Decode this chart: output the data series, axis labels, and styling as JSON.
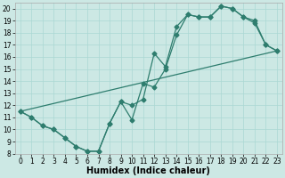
{
  "xlabel": "Humidex (Indice chaleur)",
  "bg_color": "#cce8e4",
  "grid_color": "#aad8d3",
  "line_color": "#2e7d6e",
  "xlim": [
    -0.5,
    23.5
  ],
  "ylim": [
    8,
    20.5
  ],
  "xticks": [
    0,
    1,
    2,
    3,
    4,
    5,
    6,
    7,
    8,
    9,
    10,
    11,
    12,
    13,
    14,
    15,
    16,
    17,
    18,
    19,
    20,
    21,
    22,
    23
  ],
  "yticks": [
    8,
    9,
    10,
    11,
    12,
    13,
    14,
    15,
    16,
    17,
    18,
    19,
    20
  ],
  "line1_x": [
    0,
    1,
    2,
    3,
    4,
    5,
    6,
    7,
    8,
    9,
    10,
    11,
    12,
    13,
    14,
    15,
    16,
    17,
    18,
    19,
    20,
    21,
    22,
    23
  ],
  "line1_y": [
    11.5,
    11.0,
    10.3,
    10.0,
    9.3,
    8.6,
    8.2,
    8.2,
    10.5,
    12.3,
    10.8,
    13.8,
    13.5,
    15.0,
    17.8,
    19.5,
    19.3,
    19.3,
    20.2,
    20.0,
    19.3,
    19.0,
    17.0,
    16.5
  ],
  "line2_x": [
    0,
    1,
    2,
    3,
    4,
    5,
    6,
    7,
    8,
    9,
    10,
    11,
    12,
    13,
    14,
    15,
    16,
    17,
    18,
    19,
    20,
    21,
    22,
    23
  ],
  "line2_y": [
    11.5,
    11.0,
    10.3,
    10.0,
    9.3,
    8.6,
    8.2,
    8.2,
    10.5,
    12.3,
    12.0,
    12.5,
    16.3,
    15.2,
    18.5,
    19.5,
    19.3,
    19.3,
    20.2,
    20.0,
    19.3,
    18.8,
    17.0,
    16.5
  ],
  "line3_x": [
    0,
    23
  ],
  "line3_y": [
    11.5,
    16.5
  ],
  "marker_size": 2.5,
  "linewidth": 0.9,
  "tick_fontsize": 5.5,
  "xlabel_fontsize": 7
}
